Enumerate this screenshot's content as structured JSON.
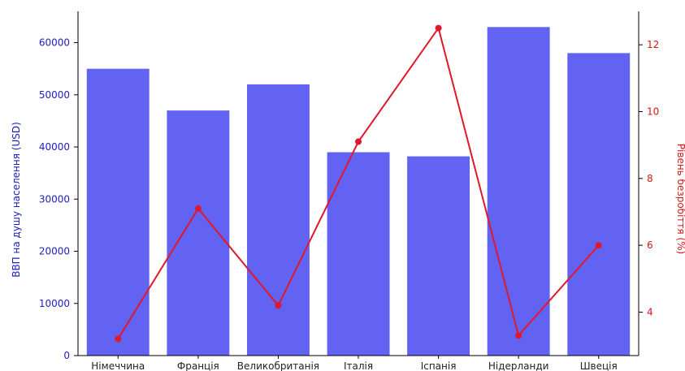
{
  "chart_data": {
    "type": "bar",
    "categories": [
      "Німеччина",
      "Франція",
      "Великобританія",
      "Італія",
      "Іспанія",
      "Нідерланди",
      "Швеція"
    ],
    "series": [
      {
        "name": "",
        "kind": "bar",
        "axis": "left",
        "color": "#5a5af2",
        "values": [
          55000,
          47000,
          52000,
          39000,
          38200,
          63000,
          58000
        ]
      },
      {
        "name": "",
        "kind": "line",
        "axis": "right",
        "color": "#e0182b",
        "values": [
          3.2,
          7.1,
          4.2,
          9.1,
          12.5,
          3.3,
          6.0
        ]
      }
    ],
    "ylabel_left": "ВВП на душу населення (USD)",
    "ylabel_right": "Рівень безробіття (%)",
    "ylim_left": [
      0,
      66000
    ],
    "ylim_right": [
      2.7,
      13.0
    ],
    "yticks_left": [
      0,
      10000,
      20000,
      30000,
      40000,
      50000,
      60000
    ],
    "yticks_right": [
      4,
      6,
      8,
      10,
      12
    ],
    "grid": false,
    "legend": "none",
    "colors": {
      "left_axis": "#2020c0",
      "right_axis": "#d01818"
    }
  }
}
